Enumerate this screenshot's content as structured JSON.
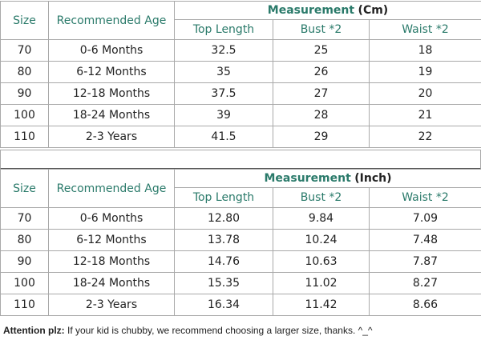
{
  "tables": [
    {
      "size_header": "Size",
      "age_header": "Recommended Age",
      "measurement": "Measurement",
      "unit": "(Cm)",
      "columns": [
        "Top Length",
        "Bust *2",
        "Waist *2"
      ],
      "rows": [
        [
          "70",
          "0-6 Months",
          "32.5",
          "25",
          "18"
        ],
        [
          "80",
          "6-12 Months",
          "35",
          "26",
          "19"
        ],
        [
          "90",
          "12-18 Months",
          "37.5",
          "27",
          "20"
        ],
        [
          "100",
          "18-24 Months",
          "39",
          "28",
          "21"
        ],
        [
          "110",
          "2-3 Years",
          "41.5",
          "29",
          "22"
        ]
      ]
    },
    {
      "size_header": "Size",
      "age_header": "Recommended Age",
      "measurement": "Measurement",
      "unit": "(Inch)",
      "columns": [
        "Top Length",
        "Bust *2",
        "Waist *2"
      ],
      "rows": [
        [
          "70",
          "0-6 Months",
          "12.80",
          "9.84",
          "7.09"
        ],
        [
          "80",
          "6-12 Months",
          "13.78",
          "10.24",
          "7.48"
        ],
        [
          "90",
          "12-18 Months",
          "14.76",
          "10.63",
          "7.87"
        ],
        [
          "100",
          "18-24 Months",
          "15.35",
          "11.02",
          "8.27"
        ],
        [
          "110",
          "2-3 Years",
          "16.34",
          "11.42",
          "8.66"
        ]
      ]
    }
  ],
  "footer": {
    "label": "Attention plz:",
    "text": "If your kid is chubby, we recommend choosing a larger size, thanks. ^_^"
  }
}
